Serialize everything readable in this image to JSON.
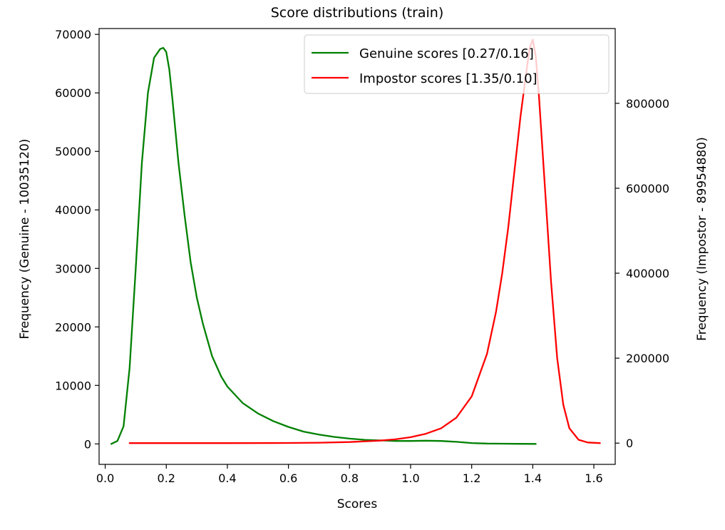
{
  "chart_data": {
    "type": "line",
    "title": "Score distributions (train)",
    "xlabel": "Scores",
    "ylabel_left": "Frequency (Genuine - 10035120)",
    "ylabel_right": "Frequency (Impostor - 89954880)",
    "xlim": [
      -0.02,
      1.67
    ],
    "ylim_left": [
      -3500,
      71000
    ],
    "ylim_right": [
      -50000,
      976000
    ],
    "xticks": [
      0.0,
      0.2,
      0.4,
      0.6,
      0.8,
      1.0,
      1.2,
      1.4,
      1.6
    ],
    "xtick_labels": [
      "0.0",
      "0.2",
      "0.4",
      "0.6",
      "0.8",
      "1.0",
      "1.2",
      "1.4",
      "1.6"
    ],
    "yticks_left": [
      0,
      10000,
      20000,
      30000,
      40000,
      50000,
      60000,
      70000
    ],
    "ytick_labels_left": [
      "0",
      "10000",
      "20000",
      "30000",
      "40000",
      "50000",
      "60000",
      "70000"
    ],
    "yticks_right": [
      0,
      200000,
      400000,
      600000,
      800000
    ],
    "ytick_labels_right": [
      "0",
      "200000",
      "400000",
      "600000",
      "800000"
    ],
    "legend_position": "top-right",
    "series": [
      {
        "name": "Genuine scores [0.27/0.16]",
        "axis": "left",
        "color": "#008000",
        "x": [
          0.02,
          0.04,
          0.06,
          0.08,
          0.1,
          0.12,
          0.14,
          0.16,
          0.18,
          0.19,
          0.2,
          0.21,
          0.22,
          0.24,
          0.26,
          0.28,
          0.3,
          0.32,
          0.35,
          0.38,
          0.4,
          0.45,
          0.5,
          0.55,
          0.6,
          0.65,
          0.7,
          0.75,
          0.8,
          0.85,
          0.9,
          0.95,
          1.0,
          1.05,
          1.1,
          1.15,
          1.2,
          1.25,
          1.3,
          1.35,
          1.41
        ],
        "y": [
          0,
          500,
          3000,
          13000,
          30000,
          48000,
          60000,
          66000,
          67500,
          67700,
          67000,
          64000,
          59000,
          48000,
          39000,
          31000,
          25000,
          20500,
          15000,
          11500,
          9800,
          7000,
          5200,
          3900,
          2900,
          2100,
          1600,
          1200,
          900,
          700,
          600,
          500,
          500,
          550,
          500,
          350,
          150,
          60,
          30,
          10,
          0
        ]
      },
      {
        "name": "Impostor scores [1.35/0.10]",
        "axis": "right",
        "color": "#ff0000",
        "x": [
          0.08,
          0.2,
          0.4,
          0.6,
          0.7,
          0.8,
          0.9,
          0.95,
          1.0,
          1.05,
          1.1,
          1.15,
          1.2,
          1.25,
          1.28,
          1.3,
          1.32,
          1.34,
          1.36,
          1.38,
          1.39,
          1.4,
          1.41,
          1.42,
          1.44,
          1.46,
          1.48,
          1.5,
          1.52,
          1.55,
          1.58,
          1.62
        ],
        "y": [
          0,
          0,
          0,
          300,
          1000,
          2500,
          6000,
          9000,
          14000,
          22000,
          35000,
          60000,
          110000,
          210000,
          310000,
          400000,
          510000,
          640000,
          770000,
          880000,
          930000,
          950000,
          910000,
          820000,
          600000,
          380000,
          200000,
          90000,
          35000,
          8000,
          1500,
          0
        ]
      }
    ]
  }
}
